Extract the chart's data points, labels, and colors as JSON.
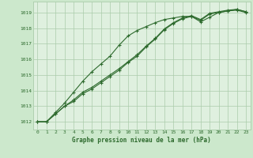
{
  "background_color": "#cce8cc",
  "plot_bg_color": "#dff0df",
  "grid_color": "#aaccaa",
  "line_color": "#2d6a2d",
  "title": "Graphe pression niveau de la mer (hPa)",
  "xlim": [
    -0.5,
    23.5
  ],
  "ylim": [
    1011.5,
    1019.7
  ],
  "yticks": [
    1012,
    1013,
    1014,
    1015,
    1016,
    1017,
    1018,
    1019
  ],
  "xticks": [
    0,
    1,
    2,
    3,
    4,
    5,
    6,
    7,
    8,
    9,
    10,
    11,
    12,
    13,
    14,
    15,
    16,
    17,
    18,
    19,
    20,
    21,
    22,
    23
  ],
  "series": [
    [
      1012.0,
      1012.0,
      1012.5,
      1013.0,
      1013.3,
      1013.8,
      1014.1,
      1014.5,
      1014.9,
      1015.3,
      1015.8,
      1016.2,
      1016.8,
      1017.3,
      1017.9,
      1018.3,
      1018.6,
      1018.75,
      1018.5,
      1018.9,
      1019.0,
      1019.1,
      1019.15,
      1019.0
    ],
    [
      1012.0,
      1012.0,
      1012.5,
      1013.0,
      1013.4,
      1013.9,
      1014.2,
      1014.6,
      1015.0,
      1015.4,
      1015.85,
      1016.3,
      1016.85,
      1017.35,
      1017.95,
      1018.35,
      1018.65,
      1018.8,
      1018.55,
      1018.95,
      1019.05,
      1019.15,
      1019.2,
      1019.05
    ],
    [
      1012.0,
      1012.0,
      1012.6,
      1013.2,
      1013.9,
      1014.6,
      1015.2,
      1015.7,
      1016.2,
      1016.9,
      1017.5,
      1017.85,
      1018.1,
      1018.35,
      1018.55,
      1018.65,
      1018.75,
      1018.75,
      1018.4,
      1018.7,
      1019.0,
      1019.1,
      1019.2,
      1019.05
    ]
  ]
}
